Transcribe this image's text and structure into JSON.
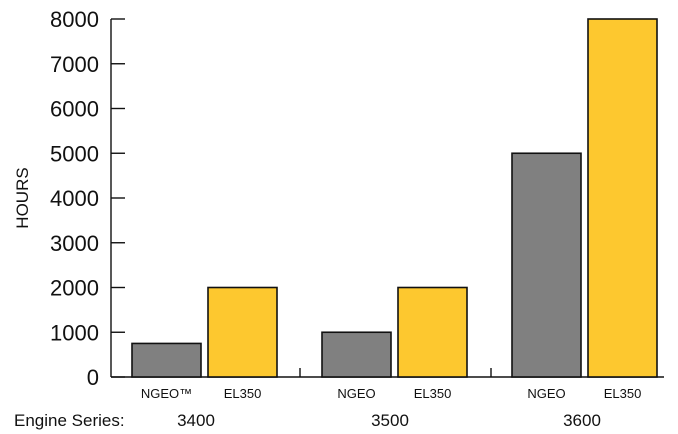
{
  "chart_data": {
    "type": "bar",
    "ylabel": "HOURS",
    "xlabel_prefix": "Engine Series:",
    "ylim": [
      0,
      8000
    ],
    "yticks": [
      0,
      1000,
      2000,
      3000,
      4000,
      5000,
      6000,
      7000,
      8000
    ],
    "grid": false,
    "legend": "none",
    "colors": {
      "ngeo": "#808080",
      "el350": "#fdc82f"
    },
    "groups": [
      {
        "series_label": "3400",
        "bars": [
          {
            "label": "NGEO™",
            "value": 750,
            "color_key": "ngeo"
          },
          {
            "label": "EL350",
            "value": 2000,
            "color_key": "el350"
          }
        ]
      },
      {
        "series_label": "3500",
        "bars": [
          {
            "label": "NGEO",
            "value": 1000,
            "color_key": "ngeo"
          },
          {
            "label": "EL350",
            "value": 2000,
            "color_key": "el350"
          }
        ]
      },
      {
        "series_label": "3600",
        "bars": [
          {
            "label": "NGEO",
            "value": 5000,
            "color_key": "ngeo"
          },
          {
            "label": "EL350",
            "value": 8000,
            "color_key": "el350"
          }
        ]
      }
    ]
  }
}
